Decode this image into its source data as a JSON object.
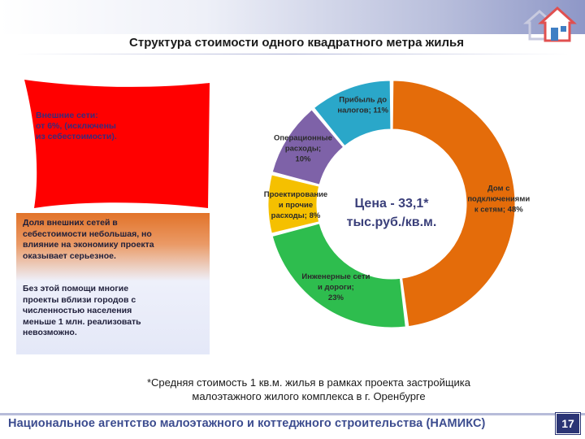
{
  "slide": {
    "title": "Структура стоимости одного квадратного метра жилья",
    "page_number": "17",
    "footer": "Национальное агентство малоэтажного и коттеджного строительства (НАМИКС)",
    "footnote_line1": "*Средняя стоимость 1 кв.м. жилья в рамках проекта застройщика",
    "footnote_line2": "малоэтажного жилого комплекса в г. Оренбурге"
  },
  "red_note": {
    "line1": "Внешние сети:",
    "line2": "от  6%, (исключены",
    "line3": "из себестоимости)."
  },
  "info_box": {
    "para1": [
      "Доля внешних сетей в",
      "себестоимости небольшая, но",
      "влияние на экономику проекта",
      "оказывает серьезное."
    ],
    "para2": [
      "Без этой помощи многие",
      "проекты вблизи городов с",
      "численностью населения",
      "меньше 1 млн. реализовать",
      "невозможно."
    ]
  },
  "chart_data": {
    "type": "pie",
    "center_label_line1": "Цена - 33,1*",
    "center_label_line2": "тыс.руб./кв.м.",
    "slices": [
      {
        "label_lines": [
          "Дом с",
          "подключениями",
          "к сетям; 48%"
        ],
        "value": 48,
        "color": "#e46c0a"
      },
      {
        "label_lines": [
          "Инженерные сети",
          "и дороги;",
          "23%"
        ],
        "value": 23,
        "color": "#2ebd4e"
      },
      {
        "label_lines": [
          "Проектирование",
          "и прочие",
          "расходы; 8%"
        ],
        "value": 8,
        "color": "#f5c000"
      },
      {
        "label_lines": [
          "Операционные",
          "расходы;",
          "10%"
        ],
        "value": 10,
        "color": "#7e62a8"
      },
      {
        "label_lines": [
          "Прибыль до",
          "налогов; 11%"
        ],
        "value": 11,
        "color": "#2aa7c9"
      }
    ]
  }
}
